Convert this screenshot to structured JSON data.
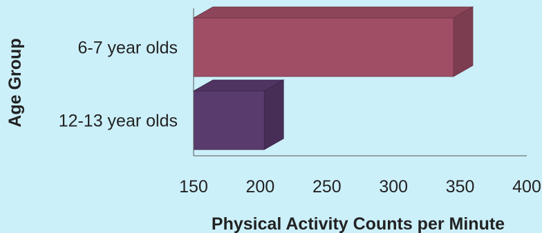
{
  "chart_data": {
    "type": "bar",
    "orientation": "horizontal",
    "style": "3d",
    "title": "",
    "xlabel": "Physical Activity Counts per Minute",
    "ylabel": "Age Group",
    "xlim": [
      150,
      400
    ],
    "xticks": [
      150,
      200,
      250,
      300,
      350,
      400
    ],
    "categories": [
      "6-7 year olds",
      "12-13 year olds"
    ],
    "values": [
      345,
      203
    ],
    "colors": [
      "#a04e66",
      "#5a3b6e"
    ],
    "grid": false,
    "legend": "none"
  }
}
